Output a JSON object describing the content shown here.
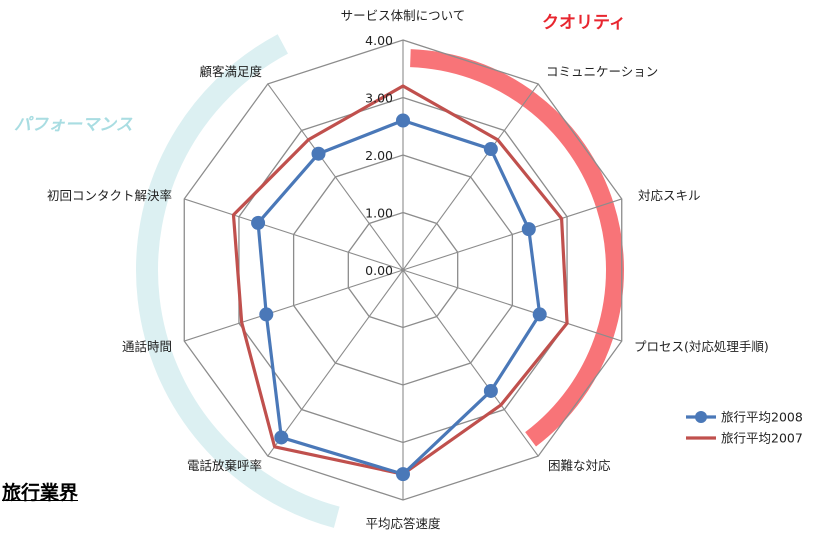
{
  "industry_label": "旅行業界",
  "arc_labels": {
    "quality": "クオリティ",
    "performance": "パフォーマンス"
  },
  "colors": {
    "quality_arc": "#f87478",
    "quality_text": "#e8262f",
    "performance_arc": "#dcf0f2",
    "performance_text": "#a9dde2",
    "series_2008": "#4a78b8",
    "series_2007": "#c0504d",
    "grid": "#8c8c8c"
  },
  "chart_data": {
    "type": "radar",
    "title": "",
    "categories": [
      "サービス体制について",
      "コミュニケーション",
      "対応スキル",
      "プロセス(対応処理手順)",
      "困難な対応",
      "平均応答速度",
      "電話放棄呼率",
      "通話時間",
      "初回コンタクト解決率",
      "顧客満足度"
    ],
    "ticks": [
      "0.00",
      "1.00",
      "2.00",
      "3.00",
      "4.00"
    ],
    "range": [
      0,
      4
    ],
    "grid": true,
    "legend_position": "right",
    "series": [
      {
        "name": "旅行平均2008",
        "values": [
          2.6,
          2.6,
          2.3,
          2.5,
          2.6,
          3.55,
          3.6,
          2.5,
          2.65,
          2.5
        ],
        "color": "#4a78b8",
        "marker": "circle"
      },
      {
        "name": "旅行平均2007",
        "values": [
          3.2,
          2.8,
          2.9,
          3.0,
          2.9,
          3.55,
          3.8,
          2.95,
          3.1,
          2.8
        ],
        "color": "#c0504d",
        "marker": "none"
      }
    ]
  }
}
